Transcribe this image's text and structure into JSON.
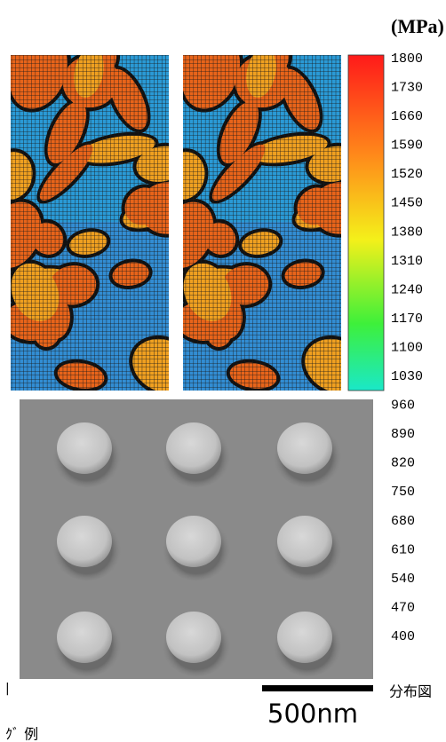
{
  "unit_label": "(MPa)",
  "colorbar": {
    "ticks": [
      1800,
      1730,
      1660,
      1590,
      1520,
      1450,
      1380,
      1310,
      1240,
      1170,
      1100,
      1030,
      960,
      890,
      820,
      750,
      680,
      610,
      540,
      470,
      400
    ]
  },
  "scale_bar": "500nm",
  "caption": "分布図",
  "fragments": [
    "|",
    "ｸﾞ 例"
  ]
}
